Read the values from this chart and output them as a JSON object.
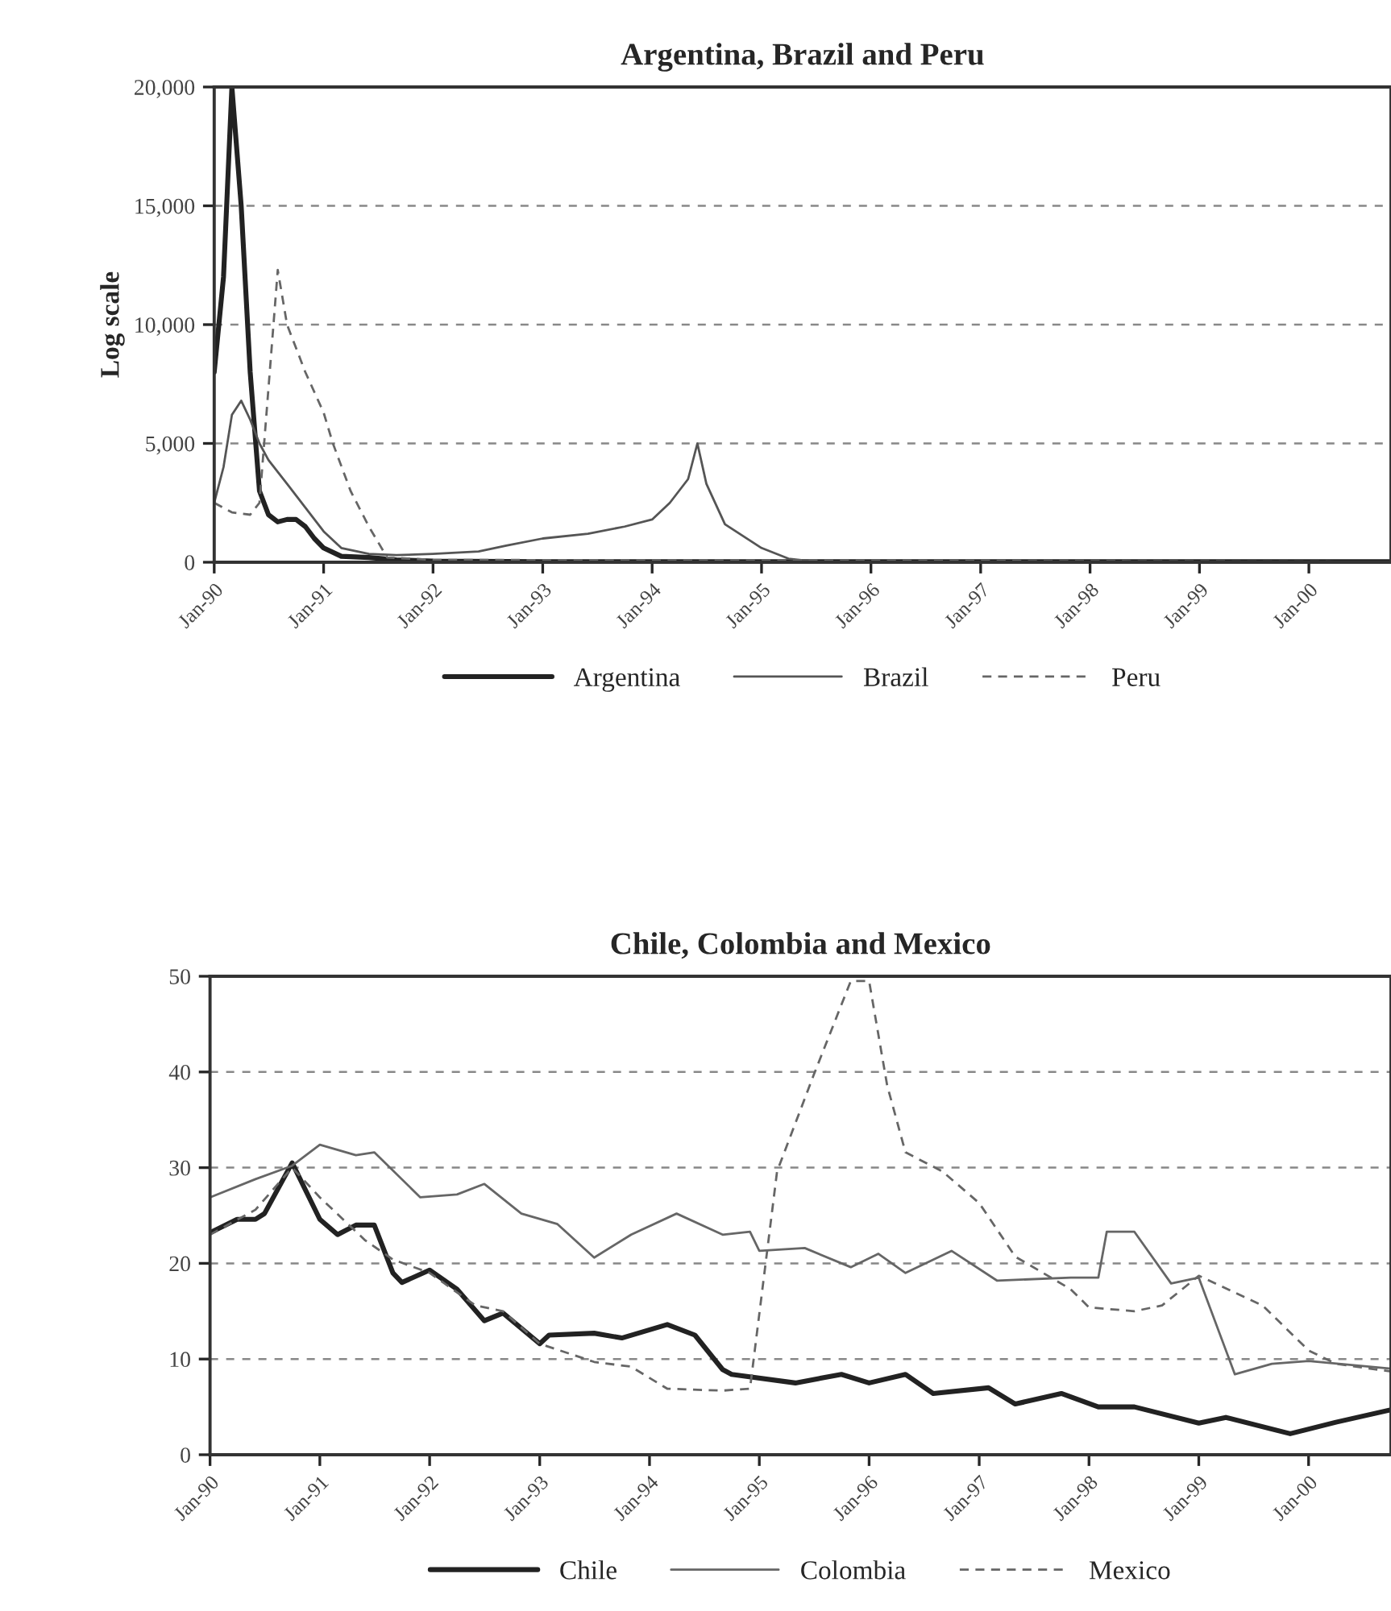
{
  "chart_data": [
    {
      "type": "line",
      "title": "Argentina, Brazil and Peru",
      "ylabel": "Log scale",
      "xlim": [
        "1990-01",
        "2000-10"
      ],
      "xticks": [
        {
          "value": "1990-01",
          "label": "Jan-90"
        },
        {
          "value": "1991-01",
          "label": "Jan-91"
        },
        {
          "value": "1992-01",
          "label": "Jan-92"
        },
        {
          "value": "1993-01",
          "label": "Jan-93"
        },
        {
          "value": "1994-01",
          "label": "Jan-94"
        },
        {
          "value": "1995-01",
          "label": "Jan-95"
        },
        {
          "value": "1996-01",
          "label": "Jan-96"
        },
        {
          "value": "1997-01",
          "label": "Jan-97"
        },
        {
          "value": "1998-01",
          "label": "Jan-98"
        },
        {
          "value": "1999-01",
          "label": "Jan-99"
        },
        {
          "value": "2000-01",
          "label": "Jan-00"
        }
      ],
      "ylim": [
        0,
        20000
      ],
      "yticks": [
        {
          "value": 0,
          "label": "0"
        },
        {
          "value": 5000,
          "label": "5,000"
        },
        {
          "value": 10000,
          "label": "10,000"
        },
        {
          "value": 15000,
          "label": "15,000"
        },
        {
          "value": 20000,
          "label": "20,000"
        }
      ],
      "grid": "y",
      "legend": "bottom",
      "series": [
        {
          "name": "Argentina",
          "color": "#222222",
          "line_style": "solid",
          "x": [
            "1990-01",
            "1990-02",
            "1990-03",
            "1990-04",
            "1990-05",
            "1990-06",
            "1990-07",
            "1990-08",
            "1990-09",
            "1990-10",
            "1990-11",
            "1990-12",
            "1991-01",
            "1991-03",
            "1991-06",
            "1991-09",
            "1992-01",
            "1993-01",
            "2000-10"
          ],
          "values": [
            8000,
            12000,
            20000,
            15000,
            8000,
            3000,
            2000,
            1700,
            1800,
            1800,
            1500,
            1000,
            600,
            250,
            200,
            100,
            50,
            20,
            20
          ]
        },
        {
          "name": "Brazil",
          "color": "#555555",
          "line_style": "solid",
          "x": [
            "1990-01",
            "1990-02",
            "1990-03",
            "1990-04",
            "1990-05",
            "1990-06",
            "1990-07",
            "1990-09",
            "1990-11",
            "1991-01",
            "1991-03",
            "1991-06",
            "1991-09",
            "1992-01",
            "1992-06",
            "1992-09",
            "1993-01",
            "1993-06",
            "1993-10",
            "1994-01",
            "1994-03",
            "1994-05",
            "1994-06",
            "1994-07",
            "1994-09",
            "1995-01",
            "1995-04",
            "1995-07",
            "2000-10"
          ],
          "values": [
            2500,
            4000,
            6200,
            6800,
            6000,
            5000,
            4300,
            3300,
            2300,
            1300,
            600,
            350,
            300,
            350,
            450,
            700,
            1000,
            1200,
            1500,
            1800,
            2500,
            3500,
            5000,
            3300,
            1600,
            600,
            150,
            20,
            20
          ]
        },
        {
          "name": "Peru",
          "color": "#666666",
          "line_style": "dashed",
          "x": [
            "1990-01",
            "1990-03",
            "1990-05",
            "1990-06",
            "1990-08",
            "1990-09",
            "1990-11",
            "1991-01",
            "1991-02",
            "1991-04",
            "1991-06",
            "1991-08",
            "1992-01",
            "2000-10"
          ],
          "values": [
            2500,
            2100,
            2000,
            2500,
            12300,
            10000,
            8000,
            6300,
            5000,
            3000,
            1500,
            200,
            100,
            20
          ]
        }
      ]
    },
    {
      "type": "line",
      "title": "Chile, Colombia and Mexico",
      "xlim": [
        "1990-01",
        "2000-10"
      ],
      "xticks": [
        {
          "value": "1990-01",
          "label": "Jan-90"
        },
        {
          "value": "1991-01",
          "label": "Jan-91"
        },
        {
          "value": "1992-01",
          "label": "Jan-92"
        },
        {
          "value": "1993-01",
          "label": "Jan-93"
        },
        {
          "value": "1994-01",
          "label": "Jan-94"
        },
        {
          "value": "1995-01",
          "label": "Jan-95"
        },
        {
          "value": "1996-01",
          "label": "Jan-96"
        },
        {
          "value": "1997-01",
          "label": "Jan-97"
        },
        {
          "value": "1998-01",
          "label": "Jan-98"
        },
        {
          "value": "1999-01",
          "label": "Jan-99"
        },
        {
          "value": "2000-01",
          "label": "Jan-00"
        }
      ],
      "ylim": [
        0,
        50
      ],
      "yticks": [
        0,
        10,
        20,
        30,
        40,
        50
      ],
      "grid": "y",
      "legend": "bottom",
      "series": [
        {
          "name": "Chile",
          "color": "#222222",
          "line_style": "solid",
          "x": [
            "1990-01",
            "1990-04",
            "1990-06",
            "1990-07",
            "1990-10",
            "1991-01",
            "1991-03",
            "1991-05",
            "1991-07",
            "1991-09",
            "1991-10",
            "1992-01",
            "1992-04",
            "1992-07",
            "1992-09",
            "1993-01",
            "1993-02",
            "1993-07",
            "1993-10",
            "1994-03",
            "1994-06",
            "1994-09",
            "1994-10",
            "1995-05",
            "1995-10",
            "1996-01",
            "1996-05",
            "1996-08",
            "1997-02",
            "1997-05",
            "1997-10",
            "1998-02",
            "1998-06",
            "1999-01",
            "1999-04",
            "1999-11",
            "2000-04",
            "2000-10"
          ],
          "values": [
            23.2,
            24.6,
            24.6,
            25.2,
            30.5,
            24.6,
            23,
            24,
            24,
            19,
            18,
            19.3,
            17.3,
            14,
            14.8,
            11.6,
            12.5,
            12.7,
            12.2,
            13.6,
            12.5,
            8.9,
            8.4,
            7.5,
            8.4,
            7.5,
            8.4,
            6.4,
            7,
            5.3,
            6.4,
            5,
            5,
            3.3,
            3.9,
            2.2,
            3.4,
            4.7
          ]
        },
        {
          "name": "Colombia",
          "color": "#666666",
          "line_style": "solid",
          "x": [
            "1990-01",
            "1990-06",
            "1990-10",
            "1991-01",
            "1991-05",
            "1991-07",
            "1991-12",
            "1992-04",
            "1992-07",
            "1992-11",
            "1993-03",
            "1993-07",
            "1993-11",
            "1994-04",
            "1994-09",
            "1994-12",
            "1995-01",
            "1995-06",
            "1995-11",
            "1996-02",
            "1996-05",
            "1996-10",
            "1997-03",
            "1997-11",
            "1998-02",
            "1998-03",
            "1998-06",
            "1998-10",
            "1999-01",
            "1999-05",
            "1999-09",
            "2000-01",
            "2000-10"
          ],
          "values": [
            26.9,
            28.8,
            30.2,
            32.4,
            31.3,
            31.6,
            26.9,
            27.2,
            28.3,
            25.2,
            24.1,
            20.6,
            23,
            25.2,
            23,
            23.3,
            21.3,
            21.6,
            19.6,
            21,
            19,
            21.3,
            18.2,
            18.5,
            18.5,
            23.3,
            23.3,
            17.9,
            18.5,
            8.4,
            9.5,
            9.8,
            9
          ]
        },
        {
          "name": "Mexico",
          "color": "#666666",
          "line_style": "dashed",
          "x": [
            "1990-01",
            "1990-06",
            "1990-10",
            "1991-01",
            "1991-06",
            "1991-09",
            "1992-01",
            "1992-06",
            "1992-09",
            "1993-01",
            "1993-07",
            "1993-11",
            "1994-03",
            "1994-09",
            "1994-12",
            "1995-03",
            "1995-07",
            "1995-11",
            "1996-01",
            "1996-03",
            "1996-05",
            "1996-09",
            "1997-01",
            "1997-05",
            "1997-11",
            "1998-01",
            "1998-06",
            "1998-09",
            "1999-01",
            "1999-08",
            "2000-01",
            "2000-04",
            "2000-10"
          ],
          "values": [
            23,
            25.6,
            30,
            26.9,
            22.4,
            20.4,
            19,
            15.6,
            15,
            11.6,
            9.7,
            9.2,
            6.9,
            6.7,
            6.9,
            29.6,
            39.7,
            49.5,
            49.5,
            38.6,
            31.6,
            29.6,
            26.3,
            20.7,
            17.3,
            15.4,
            15,
            15.6,
            18.7,
            15.6,
            10.9,
            9.5,
            8.7
          ]
        }
      ]
    }
  ]
}
